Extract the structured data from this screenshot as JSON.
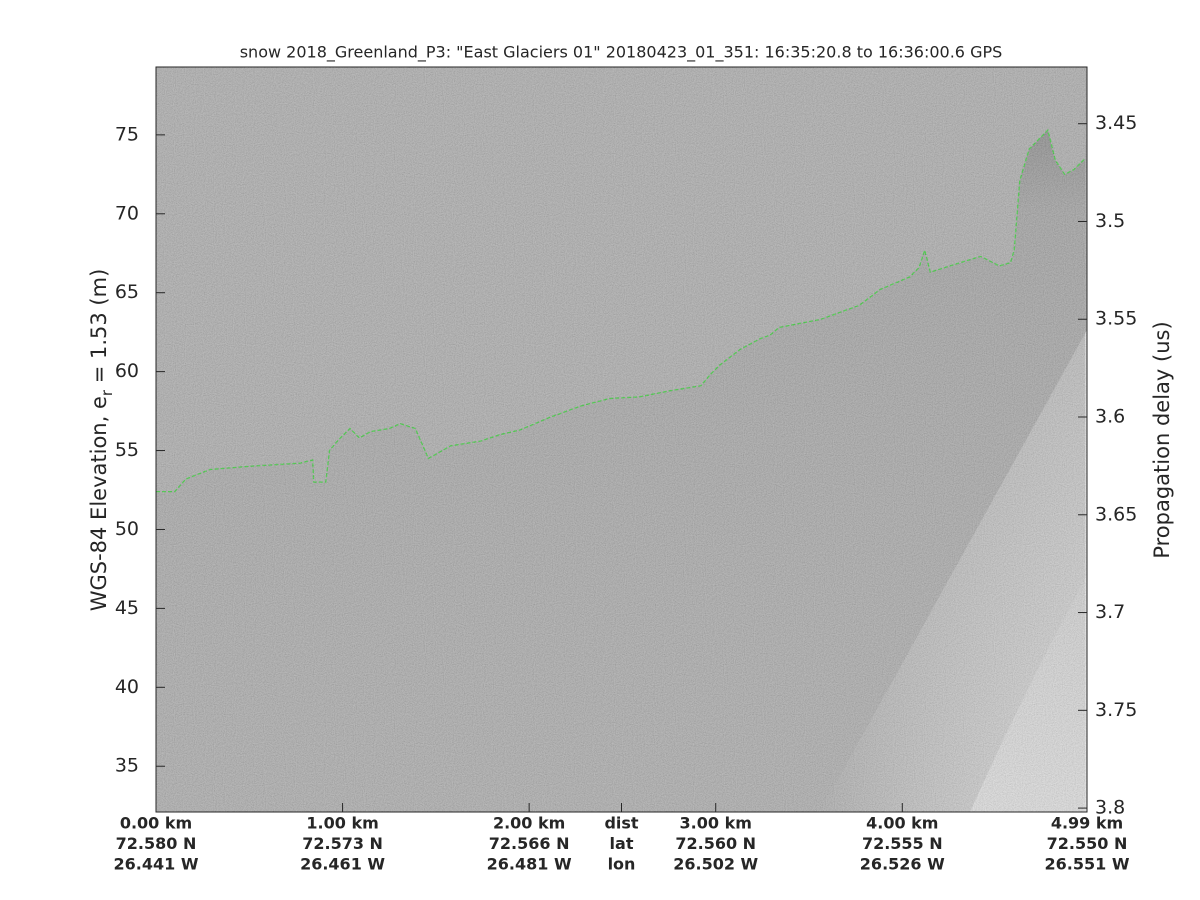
{
  "chart_data": {
    "type": "line",
    "title": "snow 2018_Greenland_P3: \"East Glaciers 01\"  20180423_01_351: 16:35:20.8 to 16:36:00.6 GPS",
    "ylabel": [
      "WGS-84 Elevation, e",
      "r",
      " = 1.53 (m)"
    ],
    "y2label": "Propagation delay (us)",
    "xlim": [
      0,
      4.99
    ],
    "xticks": [
      {
        "value": 0,
        "label": [
          "0.00 km",
          "72.580 N",
          "26.441 W"
        ]
      },
      {
        "value": 1,
        "label": [
          "1.00 km",
          "72.573 N",
          "26.461 W"
        ]
      },
      {
        "value": 2,
        "label": [
          "2.00 km",
          "72.566 N",
          "26.481 W"
        ]
      },
      {
        "value": 2.495,
        "label": [
          "dist",
          "lat",
          "lon"
        ]
      },
      {
        "value": 3,
        "label": [
          "3.00 km",
          "72.560 N",
          "26.502 W"
        ]
      },
      {
        "value": 4,
        "label": [
          "4.00 km",
          "72.555 N",
          "26.526 W"
        ]
      },
      {
        "value": 4.99,
        "label": [
          "4.99 km",
          "72.550 N",
          "26.551 W"
        ]
      }
    ],
    "ylim": [
      32.1,
      79.3
    ],
    "yticks": [
      35,
      40,
      45,
      50,
      55,
      60,
      65,
      70,
      75
    ],
    "y2lim": [
      3.802,
      3.421
    ],
    "y2ticks": [
      3.45,
      3.5,
      3.55,
      3.6,
      3.65,
      3.7,
      3.75,
      3.8
    ],
    "series": [
      {
        "color": "#22cc22",
        "x": [
          0,
          0.1,
          0.16,
          0.29,
          0.5,
          0.77,
          0.84,
          0.845,
          0.91,
          0.93,
          0.98,
          1.04,
          1.09,
          1.15,
          1.25,
          1.31,
          1.39,
          1.46,
          1.58,
          1.74,
          1.84,
          1.95,
          2.11,
          2.27,
          2.43,
          2.59,
          2.76,
          2.92,
          2.97,
          3.02,
          3.13,
          3.24,
          3.29,
          3.34,
          3.56,
          3.77,
          3.88,
          4.04,
          4.09,
          4.12,
          4.15,
          4.31,
          4.42,
          4.52,
          4.58,
          4.6,
          4.63,
          4.68,
          4.78,
          4.82,
          4.87,
          4.92,
          4.98
        ],
        "values": [
          52.4,
          52.4,
          53.2,
          53.8,
          54.0,
          54.2,
          54.4,
          53.0,
          53.0,
          55.0,
          55.7,
          56.4,
          55.8,
          56.2,
          56.4,
          56.7,
          56.4,
          54.5,
          55.3,
          55.6,
          56.0,
          56.3,
          57.1,
          57.8,
          58.3,
          58.4,
          58.8,
          59.1,
          59.8,
          60.4,
          61.4,
          62.1,
          62.3,
          62.8,
          63.3,
          64.2,
          65.2,
          66.0,
          66.6,
          67.7,
          66.3,
          66.9,
          67.3,
          66.7,
          66.9,
          67.7,
          72.1,
          74.1,
          75.3,
          73.4,
          72.5,
          72.8,
          73.5
        ]
      }
    ]
  }
}
